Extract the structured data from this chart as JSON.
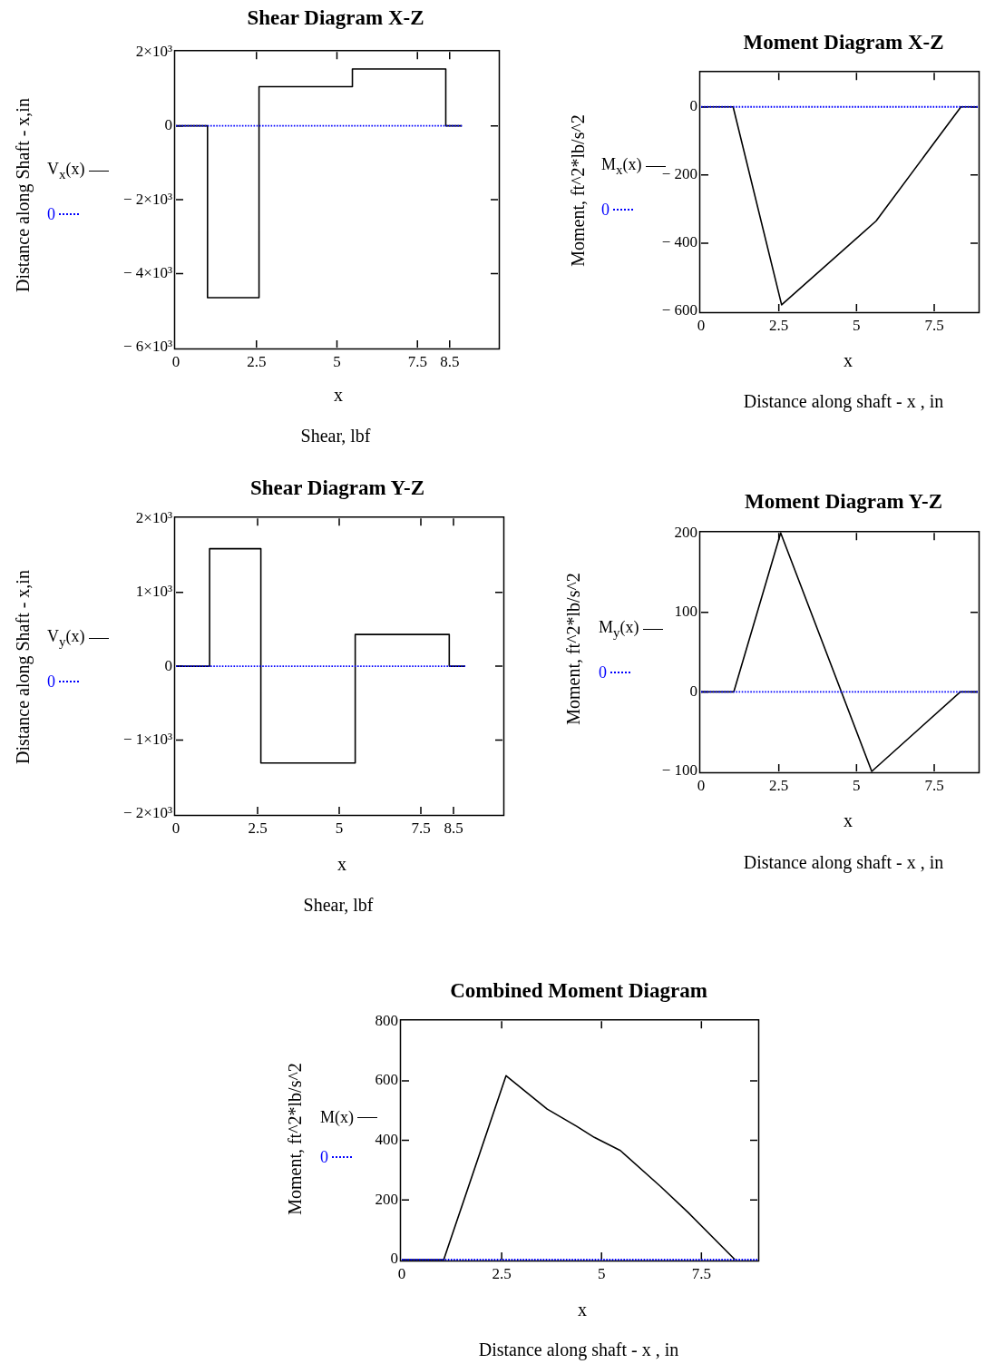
{
  "chart_data": [
    {
      "type": "step",
      "title": "Shear Diagram X-Z",
      "xlabel": "x",
      "ylabel": "Distance along Shaft - x,in",
      "annotations": [
        "Shear, lbf"
      ],
      "legend": "left",
      "marker": "none",
      "xlim": [
        0,
        10
      ],
      "xticks": [
        0,
        2.5,
        5,
        7.5,
        8.5
      ],
      "ylim": [
        -6000,
        2000
      ],
      "yticks": [
        {
          "value": -6000,
          "label": "− 6×10³"
        },
        {
          "value": -4000,
          "label": "− 4×10³"
        },
        {
          "value": -2000,
          "label": "− 2×10³"
        },
        0,
        {
          "value": 2000,
          "label": "2×10³"
        }
      ],
      "series": [
        {
          "name": "V$_{x}$(x)",
          "color": "#000000",
          "line_style": "solid",
          "x": [
            0,
            0.98,
            2.58,
            5.48,
            8.38,
            8.88
          ],
          "values": [
            0,
            -4650,
            1060,
            1540,
            0,
            0
          ]
        },
        {
          "name": "0",
          "type": "line",
          "color": "#0000ff",
          "line_style": "dotted",
          "x": [
            0,
            8.88
          ],
          "values": [
            0,
            0
          ]
        }
      ]
    },
    {
      "type": "line",
      "title": "Moment Diagram X-Z",
      "xlabel": "x",
      "ylabel": "Moment, ft^2*lb/s^2",
      "annotations": [
        "Distance along shaft - x , in"
      ],
      "legend": "left",
      "marker": "none",
      "xlim": [
        0,
        8.9
      ],
      "xticks": [
        0,
        2.5,
        5,
        7.5
      ],
      "ylim": [
        -600,
        100
      ],
      "yticks": [
        {
          "value": -600,
          "label": "− 600"
        },
        {
          "value": -400,
          "label": "− 400"
        },
        {
          "value": -200,
          "label": "− 200"
        },
        0
      ],
      "series": [
        {
          "name": "M$_{x}$(x)",
          "color": "#000000",
          "line_style": "solid",
          "x": [
            0,
            1.03,
            2.59,
            5.63,
            8.36,
            8.9
          ],
          "values": [
            0,
            0,
            -581,
            -335,
            0,
            0
          ]
        },
        {
          "name": "0",
          "color": "#0000ff",
          "line_style": "dotted",
          "x": [
            0,
            8.9
          ],
          "values": [
            0,
            0
          ]
        }
      ]
    },
    {
      "type": "step",
      "title": "Shear Diagram Y-Z",
      "xlabel": "x",
      "ylabel": "Distance along Shaft - x,in",
      "annotations": [
        "Shear, lbf"
      ],
      "legend": "left",
      "marker": "none",
      "xlim": [
        0,
        10
      ],
      "xticks": [
        0,
        2.5,
        5,
        7.5,
        8.5
      ],
      "ylim": [
        -2000,
        2000
      ],
      "yticks": [
        {
          "value": -2000,
          "label": "− 2×10³"
        },
        {
          "value": -1000,
          "label": "− 1×10³"
        },
        0,
        {
          "value": 1000,
          "label": "1×10³"
        },
        {
          "value": 2000,
          "label": "2×10³"
        }
      ],
      "series": [
        {
          "name": "V$_{y}$(x)",
          "color": "#000000",
          "line_style": "solid",
          "x": [
            0,
            1.03,
            2.6,
            5.49,
            8.37,
            8.86
          ],
          "values": [
            0,
            1590,
            -1310,
            430,
            0,
            0
          ]
        },
        {
          "name": "0",
          "type": "line",
          "color": "#0000ff",
          "line_style": "dotted",
          "x": [
            0,
            8.86
          ],
          "values": [
            0,
            0
          ]
        }
      ]
    },
    {
      "type": "line",
      "title": "Moment Diagram Y-Z",
      "xlabel": "x",
      "ylabel": "Moment, ft^2*lb/s^2",
      "annotations": [
        "Distance along shaft - x , in"
      ],
      "legend": "left",
      "marker": "none",
      "xlim": [
        0,
        8.9
      ],
      "xticks": [
        0,
        2.5,
        5,
        7.5
      ],
      "ylim": [
        -100,
        200
      ],
      "yticks": [
        {
          "value": -100,
          "label": "− 100"
        },
        0,
        100,
        200
      ],
      "series": [
        {
          "name": "M$_{y}$(x)",
          "color": "#000000",
          "line_style": "solid",
          "x": [
            0,
            1.05,
            2.56,
            5.49,
            8.34,
            8.9
          ],
          "values": [
            0,
            0,
            200,
            -100,
            0,
            0
          ]
        },
        {
          "name": "0",
          "color": "#0000ff",
          "line_style": "dotted",
          "x": [
            0,
            8.9
          ],
          "values": [
            0,
            0
          ]
        }
      ]
    },
    {
      "type": "line",
      "title": "Combined Moment Diagram",
      "xlabel": "x",
      "ylabel": "Moment, ft^2*lb/s^2",
      "annotations": [
        "Distance along shaft - x , in"
      ],
      "legend": "left",
      "marker": "none",
      "xlim": [
        0,
        8.9
      ],
      "xticks": [
        0,
        2.5,
        5,
        7.5
      ],
      "ylim": [
        0,
        800
      ],
      "yticks": [
        0,
        200,
        400,
        600,
        800
      ],
      "series": [
        {
          "name": "M(x)",
          "color": "#000000",
          "line_style": "solid",
          "x": [
            0,
            1.05,
            2.61,
            3.64,
            4.37,
            4.82,
            5.47,
            6.48,
            7.17,
            8.34
          ],
          "values": [
            0,
            0,
            617,
            505,
            448,
            410,
            366,
            245,
            158,
            0
          ]
        },
        {
          "name": "0",
          "color": "#0000ff",
          "line_style": "dotted",
          "x": [
            0,
            8.9
          ],
          "values": [
            0,
            0
          ]
        }
      ]
    }
  ]
}
